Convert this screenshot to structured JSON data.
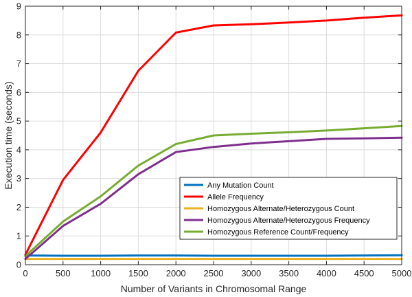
{
  "chart_data": {
    "type": "line",
    "title": "",
    "xlabel": "Number of Variants in Chromosomal Range",
    "ylabel": "Execution time (seconds)",
    "xlim": [
      0,
      5000
    ],
    "ylim": [
      0,
      9
    ],
    "xticks": [
      0,
      500,
      1000,
      1500,
      2000,
      2500,
      3000,
      3500,
      4000,
      4500,
      5000
    ],
    "yticks": [
      0,
      1,
      2,
      3,
      4,
      5,
      6,
      7,
      8,
      9
    ],
    "grid": true,
    "legend_position": "lower-right",
    "x": [
      0,
      500,
      1000,
      1500,
      2000,
      2500,
      3000,
      3500,
      4000,
      4500,
      5000
    ],
    "series": [
      {
        "name": "Any Mutation Count",
        "color": "#0072BD",
        "values": [
          0.32,
          0.31,
          0.31,
          0.32,
          0.32,
          0.31,
          0.31,
          0.31,
          0.31,
          0.32,
          0.33
        ]
      },
      {
        "name": "Allele Frequency",
        "color": "#FF0000",
        "values": [
          0.35,
          2.95,
          4.6,
          6.75,
          8.08,
          8.33,
          8.37,
          8.43,
          8.5,
          8.6,
          8.68
        ]
      },
      {
        "name": "Homozygous Alternate/Heterozygous Count",
        "color": "#EDB120",
        "values": [
          0.2,
          0.2,
          0.2,
          0.2,
          0.2,
          0.2,
          0.2,
          0.2,
          0.2,
          0.2,
          0.2
        ]
      },
      {
        "name": "Homozygous Alternate/Heterozygous Frequency",
        "color": "#7E2F8E",
        "values": [
          0.2,
          1.35,
          2.12,
          3.15,
          3.92,
          4.1,
          4.22,
          4.3,
          4.38,
          4.4,
          4.42
        ]
      },
      {
        "name": "Homozygous Reference Count/Frequency",
        "color": "#77AC30",
        "values": [
          0.3,
          1.5,
          2.38,
          3.45,
          4.2,
          4.5,
          4.56,
          4.61,
          4.67,
          4.75,
          4.83
        ]
      }
    ]
  }
}
